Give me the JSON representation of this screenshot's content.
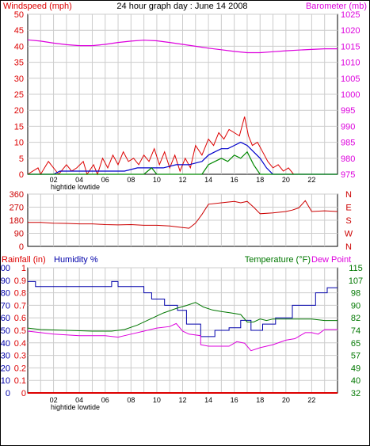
{
  "colors": {
    "wind": "#dd0000",
    "wind_avg": "#0000cc",
    "wind_gust_low": "#008800",
    "barometer": "#dd00dd",
    "direction": "#cc0000",
    "humidity": "#0000aa",
    "temperature": "#007700",
    "dewpoint": "#dd00dd",
    "rainfall": "#dd0000",
    "grid": "#cccccc",
    "text": "#000000"
  },
  "chart_data": [
    {
      "type": "line",
      "title": "24 hour graph day : June 14 2008",
      "left_label": "Windspeed (mph)",
      "right_label": "Barometer (mb)",
      "x_ticks": [
        "02",
        "04",
        "06",
        "08",
        "10",
        "12",
        "14",
        "16",
        "18",
        "20",
        "22"
      ],
      "tide_label": "hightide lowtide",
      "y_left_ticks": [
        "0",
        "5",
        "10",
        "15",
        "20",
        "25",
        "30",
        "35",
        "40",
        "45",
        "50"
      ],
      "y_right_ticks": [
        "975",
        "980",
        "985",
        "990",
        "995",
        "1000",
        "1005",
        "1010",
        "1015",
        "1020",
        "1025"
      ],
      "ylim_left": [
        0,
        50
      ],
      "ylim_right": [
        975,
        1025
      ],
      "x_range": [
        0,
        24
      ],
      "series": [
        {
          "key": "barometer",
          "axis": "right",
          "x": [
            0,
            1,
            2,
            3,
            4,
            5,
            6,
            7,
            8,
            9,
            10,
            11,
            12,
            13,
            14,
            15,
            16,
            17,
            18,
            19,
            20,
            21,
            22,
            23,
            24
          ],
          "values": [
            1017,
            1016.6,
            1016,
            1015.5,
            1015.2,
            1015.2,
            1015.6,
            1016.2,
            1016.6,
            1016.9,
            1016.7,
            1016.2,
            1015.6,
            1015,
            1014.4,
            1013.9,
            1013.4,
            1013,
            1013,
            1013.3,
            1013.6,
            1013.8,
            1014,
            1014.2,
            1014.2
          ]
        },
        {
          "key": "wind",
          "axis": "left",
          "x": [
            0,
            0.8,
            1,
            1.6,
            2.2,
            2.4,
            3,
            3.4,
            3.8,
            4.3,
            4.6,
            5.1,
            5.4,
            5.8,
            6.2,
            6.6,
            7,
            7.4,
            7.8,
            8.2,
            8.6,
            9,
            9.4,
            9.8,
            10.2,
            10.6,
            11,
            11.4,
            11.8,
            12.2,
            12.6,
            13,
            13.5,
            14,
            14.4,
            14.8,
            15.2,
            15.6,
            16,
            16.4,
            16.8,
            17.1,
            17.4,
            17.8,
            18.2,
            18.6,
            19,
            19.4,
            19.8,
            20.2,
            20.6,
            21,
            24
          ],
          "values": [
            0,
            2,
            0,
            4,
            1,
            0,
            3,
            1,
            2,
            4,
            0,
            3,
            0,
            5,
            2,
            6,
            3,
            7,
            4,
            5,
            3,
            6,
            4,
            8,
            3,
            7,
            2,
            6,
            1,
            5,
            2,
            9,
            6,
            11,
            9,
            13,
            11,
            14,
            13,
            12,
            18,
            12,
            9,
            10,
            7,
            4,
            2,
            3,
            1,
            2,
            0,
            0,
            0
          ]
        },
        {
          "key": "wind_avg",
          "axis": "left",
          "x": [
            0,
            2,
            2.5,
            4,
            6,
            7.5,
            8.5,
            9.5,
            10.5,
            11.5,
            12.5,
            13.5,
            14,
            14.5,
            15,
            15.5,
            16,
            16.5,
            17,
            17.5,
            18,
            18.5,
            19,
            24
          ],
          "values": [
            0,
            0,
            1,
            1,
            1,
            1,
            2,
            2,
            2,
            3,
            3,
            4,
            6,
            7,
            8,
            8,
            9,
            10,
            9,
            7,
            5,
            2,
            0,
            0
          ]
        },
        {
          "key": "wind_gust_low",
          "axis": "left",
          "x": [
            0,
            9,
            9.6,
            10,
            13.5,
            14,
            14.5,
            15,
            15.5,
            16,
            16.5,
            17,
            17.5,
            18,
            24
          ],
          "values": [
            0,
            0,
            2,
            0,
            0,
            3,
            4,
            5,
            4,
            6,
            5,
            7,
            3,
            0,
            0
          ]
        }
      ]
    },
    {
      "type": "line",
      "y_left_ticks": [
        "0",
        "90",
        "180",
        "270",
        "360"
      ],
      "direction_letters": [
        "N",
        "W",
        "S",
        "E",
        "N"
      ],
      "ylim": [
        0,
        360
      ],
      "x_range": [
        0,
        24
      ],
      "series": [
        {
          "key": "direction",
          "x": [
            0,
            1,
            2,
            3,
            4,
            5,
            6,
            7,
            8,
            9,
            10,
            11,
            12,
            12.5,
            13,
            13.5,
            14,
            15,
            16,
            16.5,
            17,
            17.5,
            18,
            19,
            20,
            20.5,
            21,
            21.5,
            22,
            23,
            24
          ],
          "values": [
            165,
            165,
            160,
            158,
            155,
            155,
            150,
            148,
            150,
            145,
            145,
            140,
            130,
            125,
            160,
            220,
            290,
            300,
            310,
            300,
            310,
            270,
            225,
            230,
            240,
            250,
            265,
            315,
            240,
            245,
            240
          ]
        }
      ]
    },
    {
      "type": "line",
      "labels": {
        "rainfall": "Rainfall (in)",
        "humidity": "Humidity %",
        "temperature": "Temperature (°F)",
        "dewpoint": "Dew Point"
      },
      "x_ticks": [
        "02",
        "04",
        "06",
        "08",
        "10",
        "12",
        "14",
        "16",
        "18",
        "20",
        "22"
      ],
      "tide_label": "hightide lowtide",
      "y_humidity_ticks": [
        "0",
        "10",
        "20",
        "30",
        "40",
        "50",
        "60",
        "70",
        "80",
        "90",
        "100"
      ],
      "y_rain_ticks": [
        "0",
        "0.1",
        "0.2",
        "0.3",
        "0.4",
        "0.5",
        "0.6",
        "0.7",
        "0.8",
        "0.9",
        "1"
      ],
      "y_temp_ticks": [
        "32",
        "40",
        "49",
        "57",
        "65",
        "74",
        "82",
        "90",
        "98",
        "107",
        "115"
      ],
      "ylim_humidity": [
        0,
        100
      ],
      "ylim_temperature": [
        32,
        115
      ],
      "x_range": [
        0,
        24
      ],
      "series": [
        {
          "key": "humidity",
          "axis": "humidity",
          "x": [
            0,
            0.6,
            0.6,
            2.3,
            2.3,
            6.5,
            6.5,
            7,
            7,
            9,
            9,
            9.6,
            9.6,
            10.6,
            10.6,
            11.6,
            11.6,
            12.3,
            12.3,
            13.4,
            13.4,
            14.5,
            14.5,
            15.6,
            15.6,
            16.5,
            16.5,
            17.3,
            17.3,
            18.2,
            18.2,
            19.2,
            19.2,
            20.5,
            20.5,
            22.3,
            22.3,
            23.2,
            23.2,
            24
          ],
          "values": [
            89,
            89,
            85,
            85,
            85,
            85,
            89,
            89,
            85,
            85,
            80,
            80,
            75,
            75,
            70,
            70,
            66,
            66,
            55,
            55,
            45,
            45,
            50,
            50,
            52,
            52,
            58,
            58,
            50,
            50,
            55,
            55,
            60,
            60,
            70,
            70,
            80,
            80,
            84,
            84
          ]
        },
        {
          "key": "temperature",
          "axis": "temperature",
          "x": [
            0,
            1,
            3,
            5,
            6.5,
            7.5,
            8.5,
            9.5,
            10.5,
            11.5,
            12.3,
            13,
            13.6,
            14.3,
            15,
            15.8,
            16.5,
            17,
            17.5,
            18,
            18.5,
            19,
            20,
            21,
            22,
            23,
            24
          ],
          "values": [
            75,
            74,
            73.5,
            73,
            73,
            74,
            77,
            81,
            85,
            88,
            90,
            92,
            89,
            87,
            86,
            85,
            84,
            79,
            79,
            81,
            80,
            81,
            81,
            81,
            81,
            80,
            80
          ]
        },
        {
          "key": "dewpoint",
          "axis": "temperature",
          "x": [
            0,
            1,
            2,
            3,
            4,
            5,
            6,
            7,
            7.5,
            8,
            9,
            10,
            11,
            11.5,
            12,
            12.5,
            13.4,
            13.4,
            14,
            15,
            15.6,
            16.2,
            16.8,
            17.3,
            18,
            19,
            20,
            20.7,
            21.5,
            22,
            22.5,
            23,
            24
          ],
          "values": [
            73,
            72,
            71,
            70.5,
            70,
            70,
            70,
            69,
            70,
            71,
            73,
            75,
            76,
            78,
            73,
            71,
            70,
            64,
            63,
            63,
            63,
            66,
            65,
            60,
            62,
            64,
            67,
            68,
            72,
            72,
            71,
            74,
            74
          ]
        },
        {
          "key": "rainfall",
          "axis": "humidity",
          "x": [
            0,
            24
          ],
          "values": [
            0,
            0
          ]
        }
      ]
    }
  ]
}
